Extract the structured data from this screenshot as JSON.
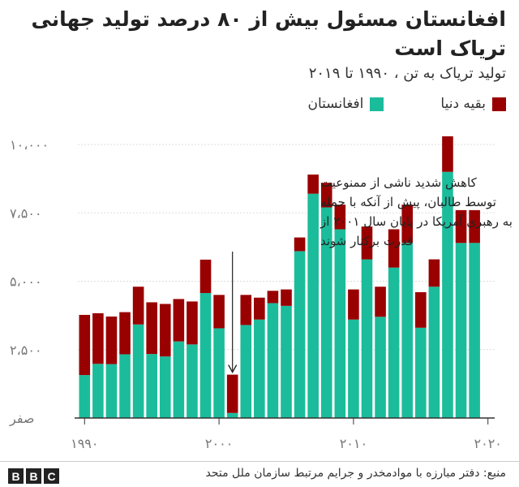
{
  "colors": {
    "afghanistan": "#1bbc9b",
    "rest_of_world": "#990000",
    "axis_text": "#777777",
    "grid": "#dddddd"
  },
  "chart_data": {
    "type": "bar",
    "stacked": true,
    "title": "افغانستان مسئول بیش از ۸۰ درصد تولید جهانی تریاک است",
    "subtitle": "تولید تریاک به تن ، ۱۹۹۰ تا ۲۰۱۹",
    "x": [
      1990,
      1991,
      1992,
      1993,
      1994,
      1995,
      1996,
      1997,
      1998,
      1999,
      2000,
      2001,
      2002,
      2003,
      2004,
      2005,
      2006,
      2007,
      2008,
      2009,
      2010,
      2011,
      2012,
      2013,
      2014,
      2015,
      2016,
      2017,
      2018,
      2019
    ],
    "x_ticks": [
      {
        "value": 1990,
        "label": "۱۹۹۰"
      },
      {
        "value": 2000,
        "label": "۲۰۰۰"
      },
      {
        "value": 2010,
        "label": "۲۰۱۰"
      },
      {
        "value": 2020,
        "label": "۲۰۲۰"
      }
    ],
    "y_ticks": [
      {
        "value": 0,
        "label": "صفر"
      },
      {
        "value": 2500,
        "label": "۲،۵۰۰"
      },
      {
        "value": 5000,
        "label": "۵،۰۰۰"
      },
      {
        "value": 7500,
        "label": "۷،۵۰۰"
      },
      {
        "value": 10000,
        "label": "۱۰،۰۰۰"
      }
    ],
    "ylim": [
      0,
      10000
    ],
    "xlim": [
      1989.5,
      2020.5
    ],
    "grid": true,
    "legend_position": "top-right",
    "series": [
      {
        "name": "افغانستان",
        "color_key": "afghanistan",
        "values": [
          1570,
          1980,
          1970,
          2330,
          3420,
          2340,
          2250,
          2800,
          2690,
          4570,
          3280,
          185,
          3400,
          3600,
          4200,
          4100,
          6100,
          8200,
          7700,
          6900,
          3600,
          5800,
          3700,
          5500,
          6400,
          3300,
          4800,
          9000,
          6400,
          6400
        ]
      },
      {
        "name": "بقیه دنیا",
        "color_key": "rest_of_world",
        "values": [
          2200,
          1850,
          1740,
          1540,
          1380,
          1890,
          1920,
          1550,
          1570,
          1220,
          1220,
          1400,
          1100,
          800,
          450,
          600,
          500,
          700,
          900,
          900,
          1100,
          1200,
          1100,
          1400,
          1400,
          1300,
          1000,
          1300,
          1200,
          1200
        ]
      }
    ],
    "annotation": {
      "text_lines": [
        "کاهش شدید ناشی از ممنوعیت",
        "توسط طالبان، پیش از آنکه با حمله",
        "به رهبری آمریکا در پایان سال ۲۰۰۱ از",
        "قدرت برکنار شوند"
      ],
      "target_x": 2001
    }
  },
  "footer": {
    "source": "منبع: دفتر مبارزه با موادمخدر و جرایم مرتبط سازمان ملل متحد",
    "logo_letters": [
      "B",
      "B",
      "C"
    ]
  }
}
